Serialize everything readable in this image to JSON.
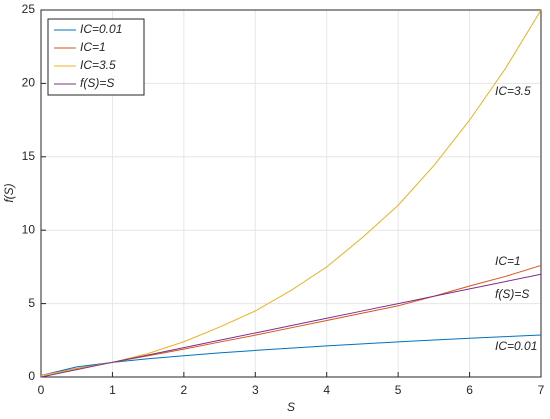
{
  "chart_data": {
    "type": "line",
    "xlabel": "S",
    "ylabel": "f(S)",
    "x": [
      0,
      0.5,
      1,
      1.5,
      2,
      2.5,
      3,
      3.5,
      4,
      4.5,
      5,
      5.5,
      6,
      6.5,
      7
    ],
    "series": [
      {
        "name": "IC=0.01",
        "color": "#0072BD",
        "values": [
          0.1,
          0.69,
          1,
          1.24,
          1.45,
          1.64,
          1.81,
          1.97,
          2.12,
          2.26,
          2.39,
          2.52,
          2.64,
          2.75,
          2.86
        ]
      },
      {
        "name": "IC=1",
        "color": "#D95319",
        "values": [
          0.1,
          0.58,
          1,
          1.45,
          1.9,
          2.38,
          2.85,
          3.35,
          3.85,
          4.35,
          4.85,
          5.5,
          6.2,
          6.85,
          7.6
        ]
      },
      {
        "name": "IC=3.5",
        "color": "#EDB120",
        "values": [
          0.1,
          0.55,
          1,
          1.6,
          2.4,
          3.4,
          4.5,
          5.9,
          7.5,
          9.5,
          11.7,
          14.4,
          17.5,
          21,
          25
        ]
      },
      {
        "name": "f(S)=S",
        "color": "#7E2F8E",
        "values": [
          0,
          0.5,
          1,
          1.5,
          2,
          2.5,
          3,
          3.5,
          4,
          4.5,
          5,
          5.5,
          6,
          6.5,
          7
        ]
      }
    ],
    "annotations": [
      "IC=3.5",
      "IC=1",
      "f(S)=S",
      "IC=0.01"
    ],
    "xlim": [
      0,
      7
    ],
    "xticks": [
      0,
      1,
      2,
      3,
      4,
      5,
      6,
      7
    ],
    "ylim": [
      0,
      25
    ],
    "yticks": [
      0,
      5,
      10,
      15,
      20,
      25
    ],
    "grid": true,
    "legend": "upper left"
  }
}
